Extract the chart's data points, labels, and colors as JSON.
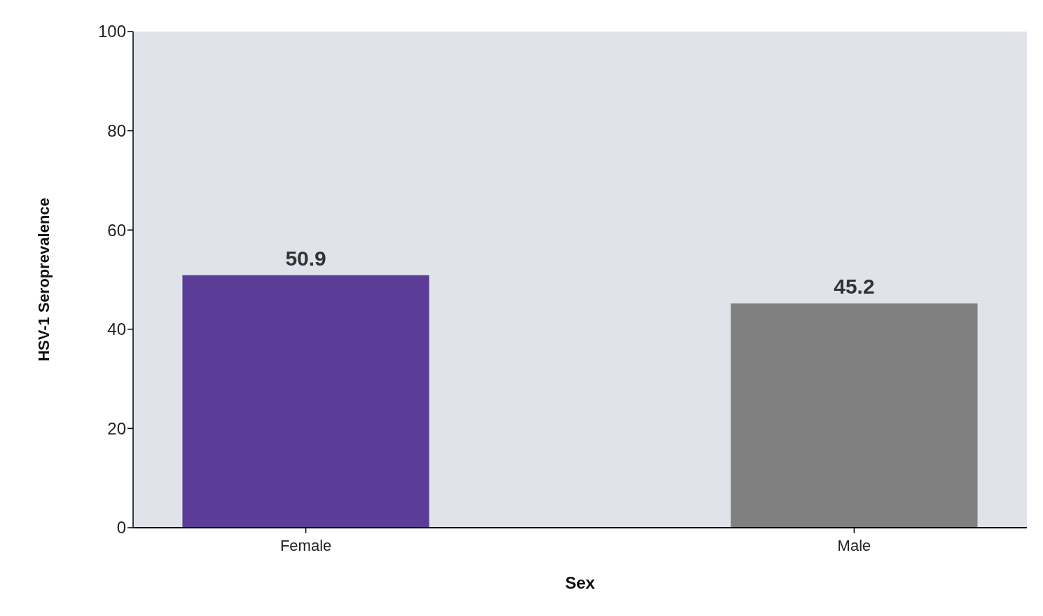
{
  "chart_data": {
    "type": "bar",
    "xlabel": "Sex",
    "ylabel": "HSV-1 Seroprevalence",
    "categories": [
      "Female",
      "Male"
    ],
    "values": [
      50.9,
      45.2
    ],
    "colors": [
      "#5b3c96",
      "#808080"
    ],
    "ylim": [
      0,
      100
    ],
    "yticks": [
      0,
      20,
      40,
      60,
      80,
      100
    ],
    "data_labels": true,
    "grid": false
  }
}
